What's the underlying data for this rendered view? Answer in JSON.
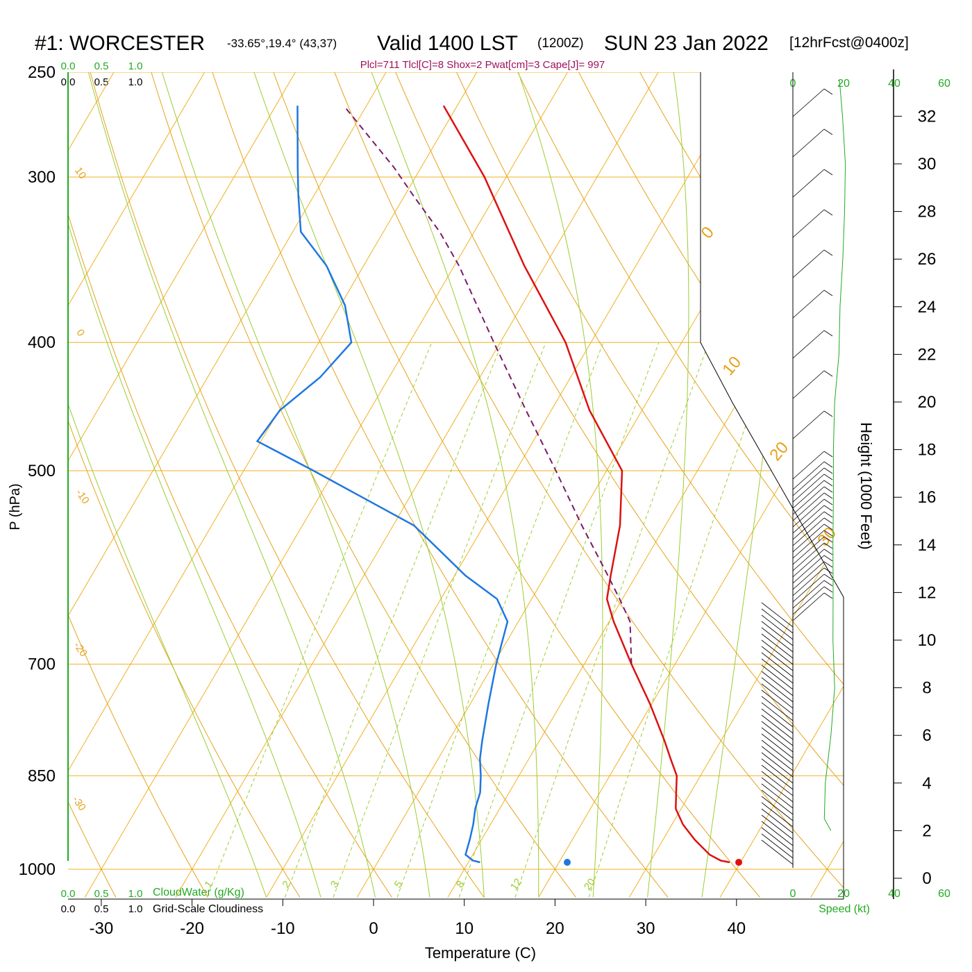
{
  "header": {
    "station": "#1: WORCESTER",
    "coords": "-33.65°,19.4° (43,37)",
    "valid_prefix": "Valid 1400 LST",
    "valid_z": "(1200Z)",
    "valid_date": "SUN 23 Jan 2022",
    "forecast": "[12hrFcst@0400z]"
  },
  "params_line": "Plcl=711 Tlcl[C]=8 Shox=2 Pwat[cm]=3 Cape[J]= 997",
  "top_scale": {
    "cloudwater_ticks": [
      "0.0",
      "0.5",
      "1.0"
    ],
    "cloudiness_ticks": [
      "0.0",
      "0.5",
      "1.0"
    ]
  },
  "bottom_scale": {
    "cloudwater_ticks": [
      "0.0",
      "0.5",
      "1.0"
    ],
    "cloudwater_label": "CloudWater (g/Kg)",
    "cloudiness_ticks": [
      "0.0",
      "0.5",
      "1.0"
    ],
    "cloudiness_label": "Grid-Scale Cloudiness"
  },
  "speed_axis": {
    "top_ticks": [
      "0",
      "20",
      "40",
      "60"
    ],
    "bottom_ticks": [
      "0",
      "20",
      "40",
      "60"
    ],
    "label": "Speed (kt)"
  },
  "colors": {
    "isotherm": "#f0b020",
    "isobar": "#f0b020",
    "dry_adiabat": "#e6a21a",
    "moist_adiabat": "#9acd32",
    "mixing_ratio": "#9acd32",
    "temperature": "#dd1111",
    "dewpoint": "#1f77e0",
    "parcel": "#7a1a6a",
    "wind_profile": "#22aa22",
    "tick_green": "#22aa22"
  },
  "chart_data": {
    "type": "line",
    "title": "#1: WORCESTER",
    "xlabel": "Temperature (C)",
    "ylabel": "P (hPa)",
    "y2label": "Height (1000 Feet)",
    "x_ticks": [
      "-30",
      "-20",
      "-10",
      "0",
      "10",
      "20",
      "30",
      "40"
    ],
    "xlim": [
      -34,
      44.5
    ],
    "p_ticks": [
      250,
      300,
      400,
      500,
      700,
      850,
      1000
    ],
    "p_tick_labels": [
      "250",
      "300",
      "400",
      "500",
      "700",
      "850",
      "1000"
    ],
    "plim": [
      250,
      1045
    ],
    "height_ticks": [
      "0",
      "2",
      "4",
      "6",
      "8",
      "10",
      "12",
      "14",
      "16",
      "18",
      "20",
      "22",
      "24",
      "26",
      "28",
      "30",
      "32"
    ],
    "mixing_ratio_labels": [
      "1",
      "2",
      "3",
      "5",
      "8",
      "12",
      "20"
    ],
    "dry_adiabat_labels": [
      "10",
      "0",
      "-10",
      "-20",
      "-30",
      "0",
      "10",
      "20",
      "30"
    ],
    "series": [
      {
        "name": "Temperature",
        "points": [
          [
            38.8,
            988
          ],
          [
            37.7,
            985
          ],
          [
            36.1,
            975
          ],
          [
            33.5,
            950
          ],
          [
            31.2,
            925
          ],
          [
            29.4,
            900
          ],
          [
            28.4,
            875
          ],
          [
            27.4,
            850
          ],
          [
            25.6,
            825
          ],
          [
            23.8,
            800
          ],
          [
            19.8,
            750
          ],
          [
            15.2,
            700
          ],
          [
            10.5,
            650
          ],
          [
            8.3,
            625
          ],
          [
            7.2,
            600
          ],
          [
            5.0,
            550
          ],
          [
            1.7,
            500
          ],
          [
            -5.8,
            450
          ],
          [
            -12.8,
            400
          ],
          [
            -22.3,
            350
          ],
          [
            -32.4,
            300
          ],
          [
            -41.5,
            265
          ]
        ]
      },
      {
        "name": "Dewpoint",
        "points": [
          [
            11.3,
            988
          ],
          [
            10.4,
            985
          ],
          [
            9.2,
            975
          ],
          [
            8.7,
            950
          ],
          [
            8.1,
            925
          ],
          [
            7.3,
            900
          ],
          [
            6.8,
            875
          ],
          [
            5.8,
            850
          ],
          [
            4.6,
            825
          ],
          [
            3.7,
            800
          ],
          [
            2.0,
            750
          ],
          [
            0.3,
            700
          ],
          [
            -1.2,
            650
          ],
          [
            -3.8,
            625
          ],
          [
            -8.8,
            600
          ],
          [
            -17.7,
            550
          ],
          [
            -32.3,
            500
          ],
          [
            -40.4,
            475
          ],
          [
            -39.9,
            450
          ],
          [
            -37.6,
            425
          ],
          [
            -36.4,
            400
          ],
          [
            -39.5,
            375
          ],
          [
            -44.1,
            350
          ],
          [
            -49.1,
            330
          ],
          [
            -51.7,
            310
          ],
          [
            -53.6,
            295
          ],
          [
            -57.6,
            265
          ]
        ]
      },
      {
        "name": "Parcel",
        "points": [
          [
            15.2,
            700
          ],
          [
            12.3,
            650
          ],
          [
            9.7,
            625
          ],
          [
            6.9,
            600
          ],
          [
            0.8,
            550
          ],
          [
            -5.6,
            500
          ],
          [
            -12.8,
            450
          ],
          [
            -20.7,
            400
          ],
          [
            -29.5,
            350
          ],
          [
            -33.8,
            330
          ],
          [
            -39.0,
            310
          ],
          [
            -43.0,
            295
          ],
          [
            -52.5,
            265
          ]
        ]
      }
    ],
    "surface_temperature": [
      39.8,
      988
    ],
    "surface_dewpoint": [
      20.9,
      988
    ],
    "wind_speed_profile_kt": [
      [
        0.0,
        2
      ],
      [
        -2.6,
        2.5
      ],
      [
        -2.2,
        4
      ],
      [
        0.0,
        6
      ],
      [
        1.5,
        8
      ],
      [
        0.8,
        10
      ],
      [
        0.9,
        12
      ],
      [
        0.8,
        14
      ],
      [
        1.0,
        16
      ],
      [
        1.0,
        18
      ],
      [
        1.5,
        20
      ],
      [
        3.2,
        22
      ],
      [
        3.6,
        24
      ],
      [
        4.7,
        26
      ],
      [
        5.4,
        28
      ],
      [
        5.7,
        30
      ],
      [
        4.6,
        32
      ],
      [
        3.4,
        33.5
      ]
    ]
  }
}
